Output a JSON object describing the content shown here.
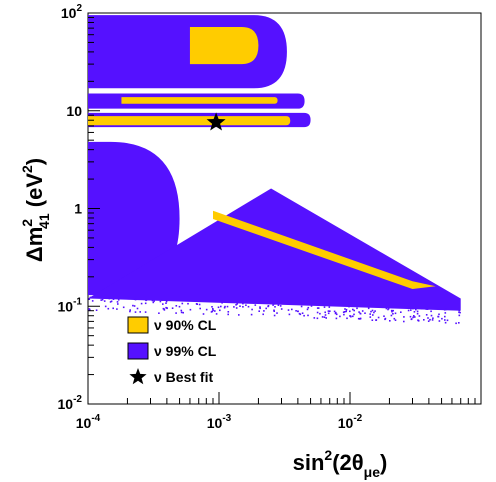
{
  "chart_data": {
    "type": "scatter",
    "xscale": "log",
    "yscale": "log",
    "xlim": [
      0.0001,
      0.1
    ],
    "ylim": [
      0.01,
      100
    ],
    "x_ticks": [
      {
        "base": "10",
        "exp": "-4"
      },
      {
        "base": "10",
        "exp": "-3"
      },
      {
        "base": "10",
        "exp": "-2"
      }
    ],
    "y_ticks": [
      {
        "base": "10",
        "exp": "-2"
      },
      {
        "base": "10",
        "exp": "-1"
      },
      {
        "text": "1"
      },
      {
        "text": "10"
      },
      {
        "base": "10",
        "exp": "2"
      }
    ],
    "xlabel": {
      "pre": "sin",
      "sup": "2",
      "mid": "(2θ",
      "sub": "μe",
      "post": ")"
    },
    "ylabel": {
      "pre": "Δm",
      "sup": "2",
      "sub": "41",
      "post": " (eV",
      "sup2": "2",
      "post2": ")"
    },
    "legend": [
      {
        "label": "ν 90% CL",
        "color": "#ffcc00",
        "marker": "box"
      },
      {
        "label": "ν 99% CL",
        "color": "#5511ff",
        "marker": "box"
      },
      {
        "label": "ν Best fit",
        "color": "#000000",
        "marker": "star"
      }
    ],
    "legend_position": "bottom-left",
    "colors": {
      "cl90": "#ffcc00",
      "cl99": "#5511ff",
      "best_fit": "#000000"
    },
    "best_fit": {
      "x": 0.00095,
      "y": 7.6
    },
    "regions": [
      {
        "level": "99% CL",
        "type": "band",
        "x_min": 0.0001,
        "x_max": 0.0033,
        "y_min": 17,
        "y_max": 95
      },
      {
        "level": "99% CL",
        "type": "band",
        "x_min": 0.0001,
        "x_max": 0.0045,
        "y_min": 10.5,
        "y_max": 15
      },
      {
        "level": "99% CL",
        "type": "band",
        "x_min": 0.0001,
        "x_max": 0.005,
        "y_min": 6.8,
        "y_max": 9.5
      },
      {
        "level": "99% CL",
        "type": "band",
        "x_min": 0.0001,
        "x_max": 0.0005,
        "y_min": 0.13,
        "y_max": 4.8
      },
      {
        "level": "99% CL",
        "type": "diagonal",
        "upper": [
          [
            0.0025,
            1.6
          ],
          [
            0.07,
            0.12
          ]
        ],
        "lower": [
          [
            0.0001,
            0.12
          ],
          [
            0.07,
            0.09
          ]
        ]
      },
      {
        "level": "90% CL",
        "type": "band",
        "x_min": 0.0006,
        "x_max": 0.002,
        "y_min": 30,
        "y_max": 72
      },
      {
        "level": "90% CL",
        "type": "band",
        "x_min": 0.00018,
        "x_max": 0.0028,
        "y_min": 11.8,
        "y_max": 13.8
      },
      {
        "level": "90% CL",
        "type": "band",
        "x_min": 0.0001,
        "x_max": 0.0035,
        "y_min": 7.1,
        "y_max": 8.8
      },
      {
        "level": "90% CL",
        "type": "diagonal",
        "path": [
          [
            0.0009,
            0.95
          ],
          [
            0.03,
            0.18
          ],
          [
            0.045,
            0.16
          ],
          [
            0.03,
            0.15
          ],
          [
            0.0009,
            0.78
          ]
        ]
      }
    ]
  }
}
